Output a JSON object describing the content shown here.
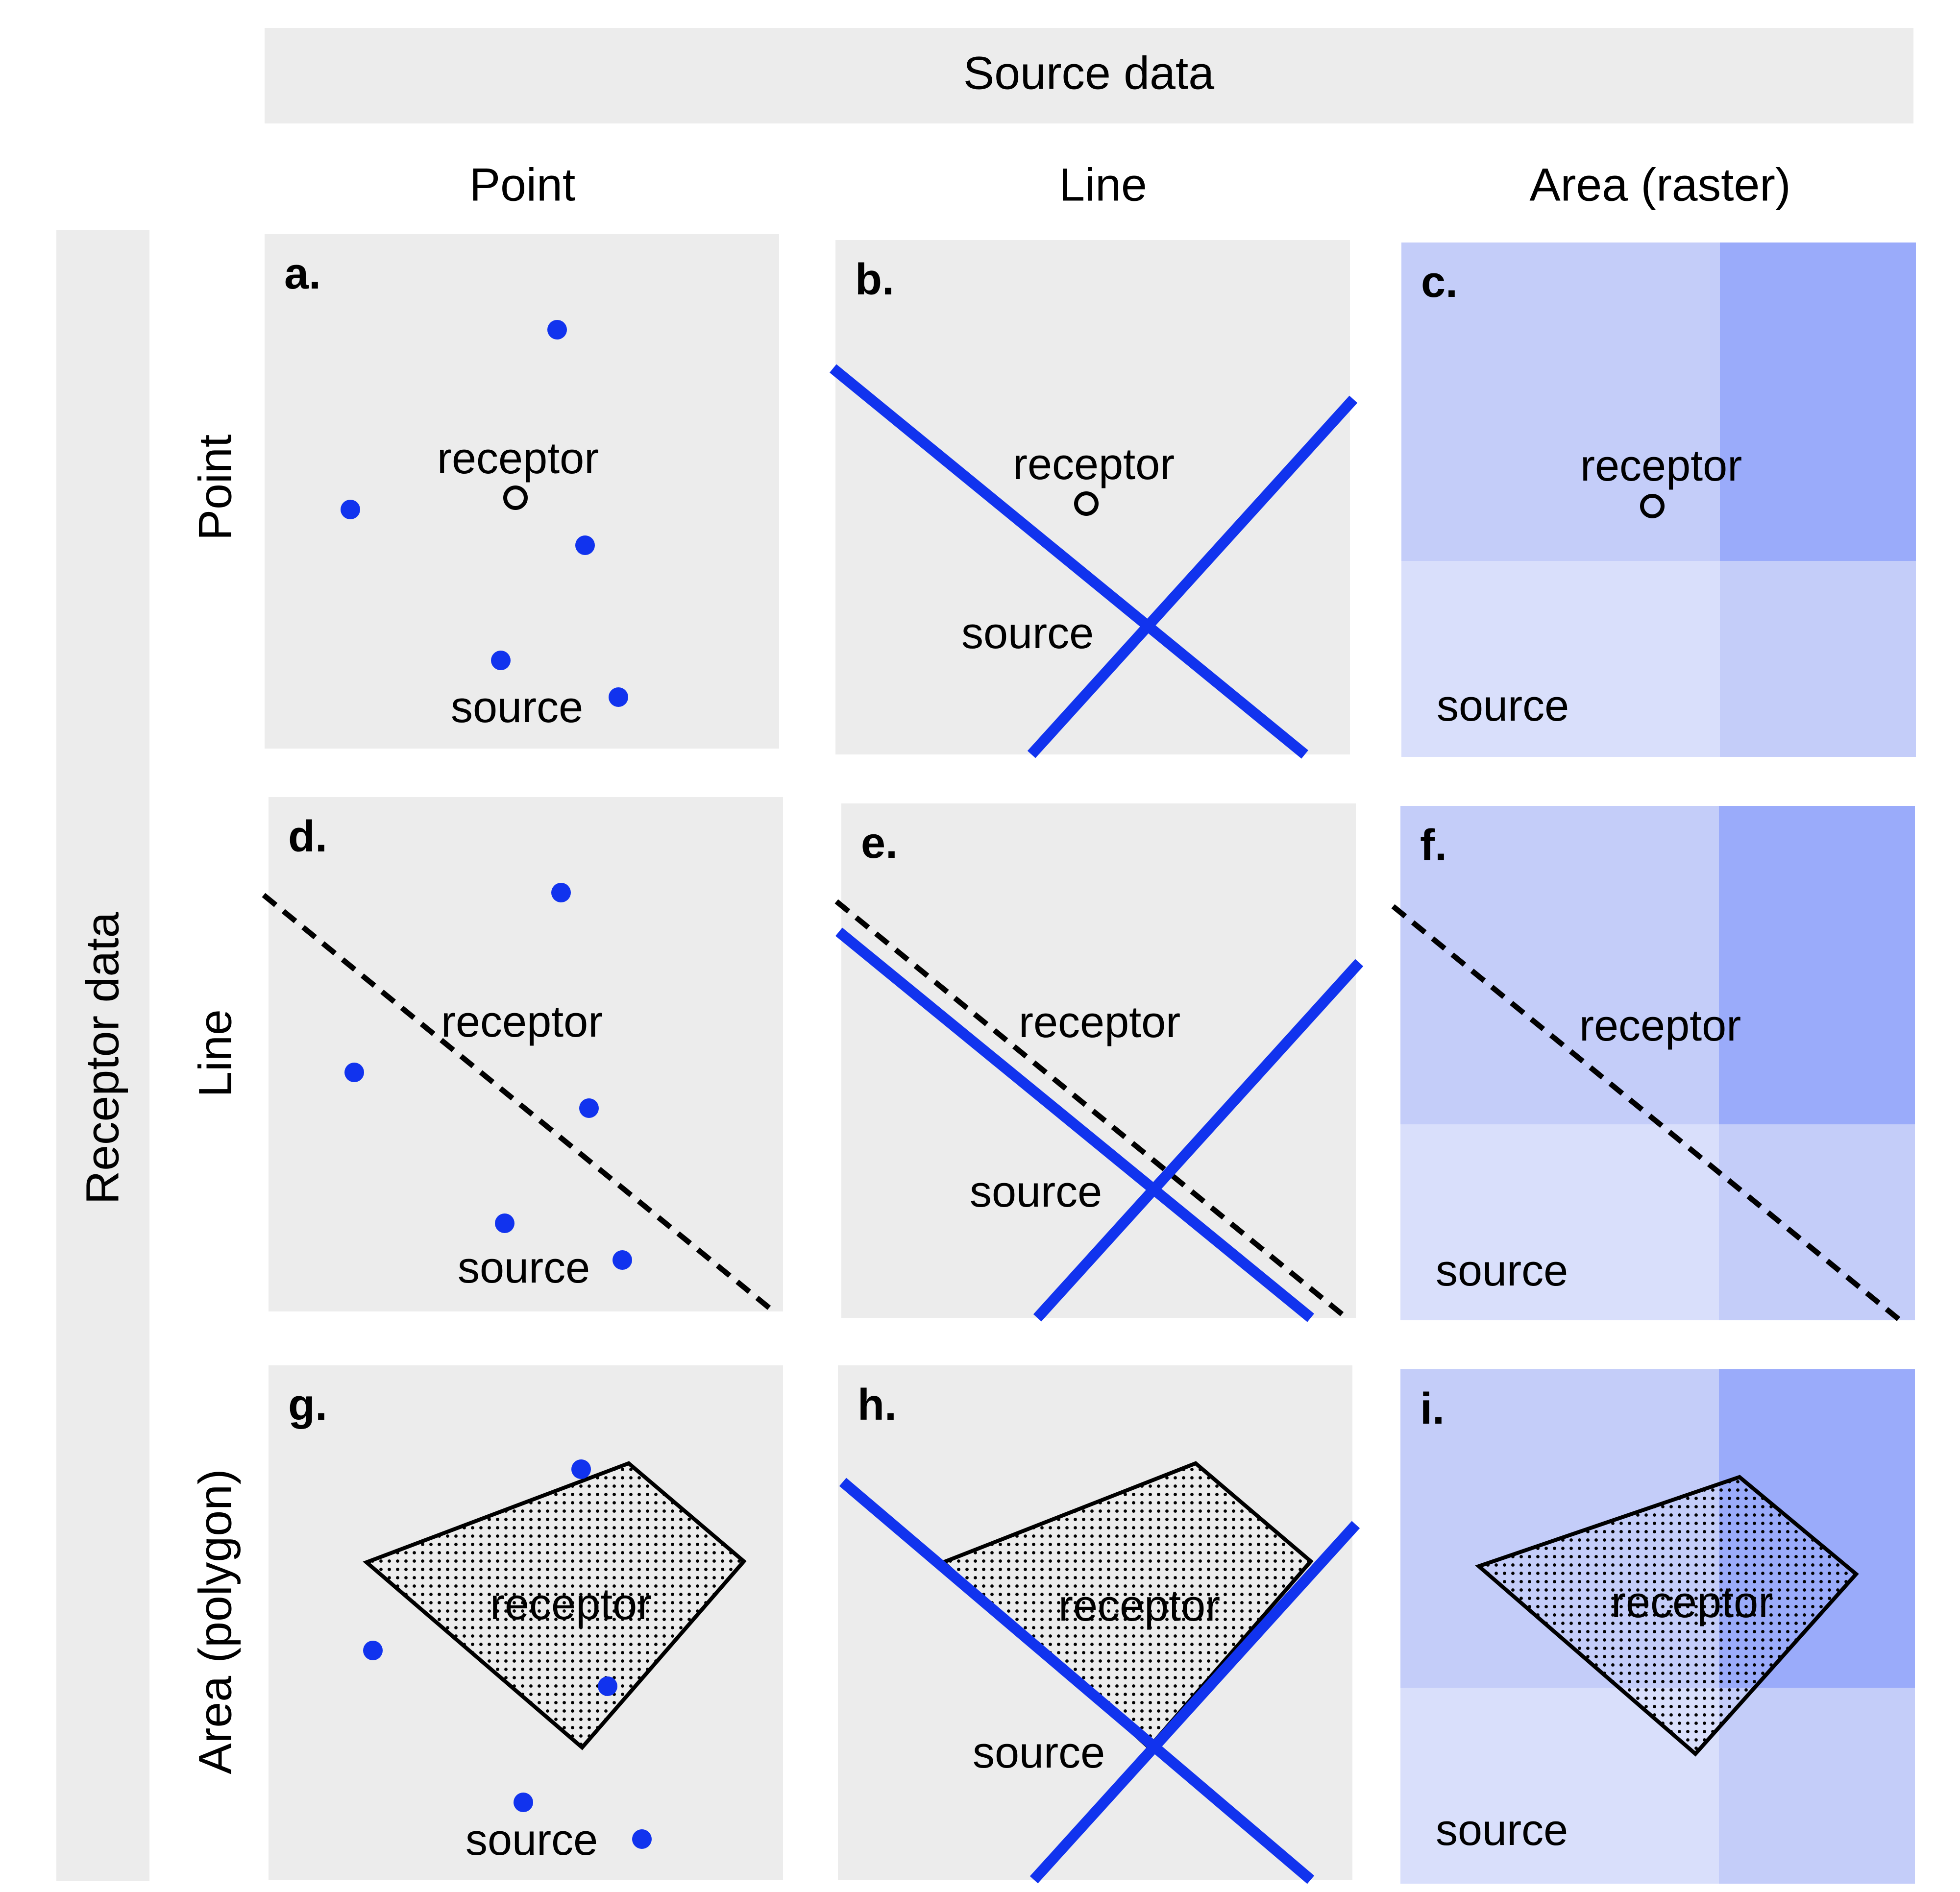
{
  "header": {
    "source_title": "Source data",
    "receptor_title": "Receptor data"
  },
  "columns": [
    "Point",
    "Line",
    "Area (raster)"
  ],
  "rows": [
    "Point",
    "Line",
    "Area (polygon)"
  ],
  "panels": [
    {
      "letter": "a.",
      "receptor": "receptor",
      "source": "source"
    },
    {
      "letter": "b.",
      "receptor": "receptor",
      "source": "source"
    },
    {
      "letter": "c.",
      "receptor": "receptor",
      "source": "source"
    },
    {
      "letter": "d.",
      "receptor": "receptor",
      "source": "source"
    },
    {
      "letter": "e.",
      "receptor": "receptor",
      "source": "source"
    },
    {
      "letter": "f.",
      "receptor": "receptor",
      "source": "source"
    },
    {
      "letter": "g.",
      "receptor": "receptor",
      "source": "source"
    },
    {
      "letter": "h.",
      "receptor": "receptor",
      "source": "source"
    },
    {
      "letter": "i.",
      "receptor": "receptor",
      "source": "source"
    }
  ],
  "colors": {
    "panel_bg": "#ececec",
    "source_blue": "#1133ee",
    "raster_light": "#d9dffb",
    "raster_mid": "#c4cdf9",
    "raster_dark": "#9aabfa"
  }
}
